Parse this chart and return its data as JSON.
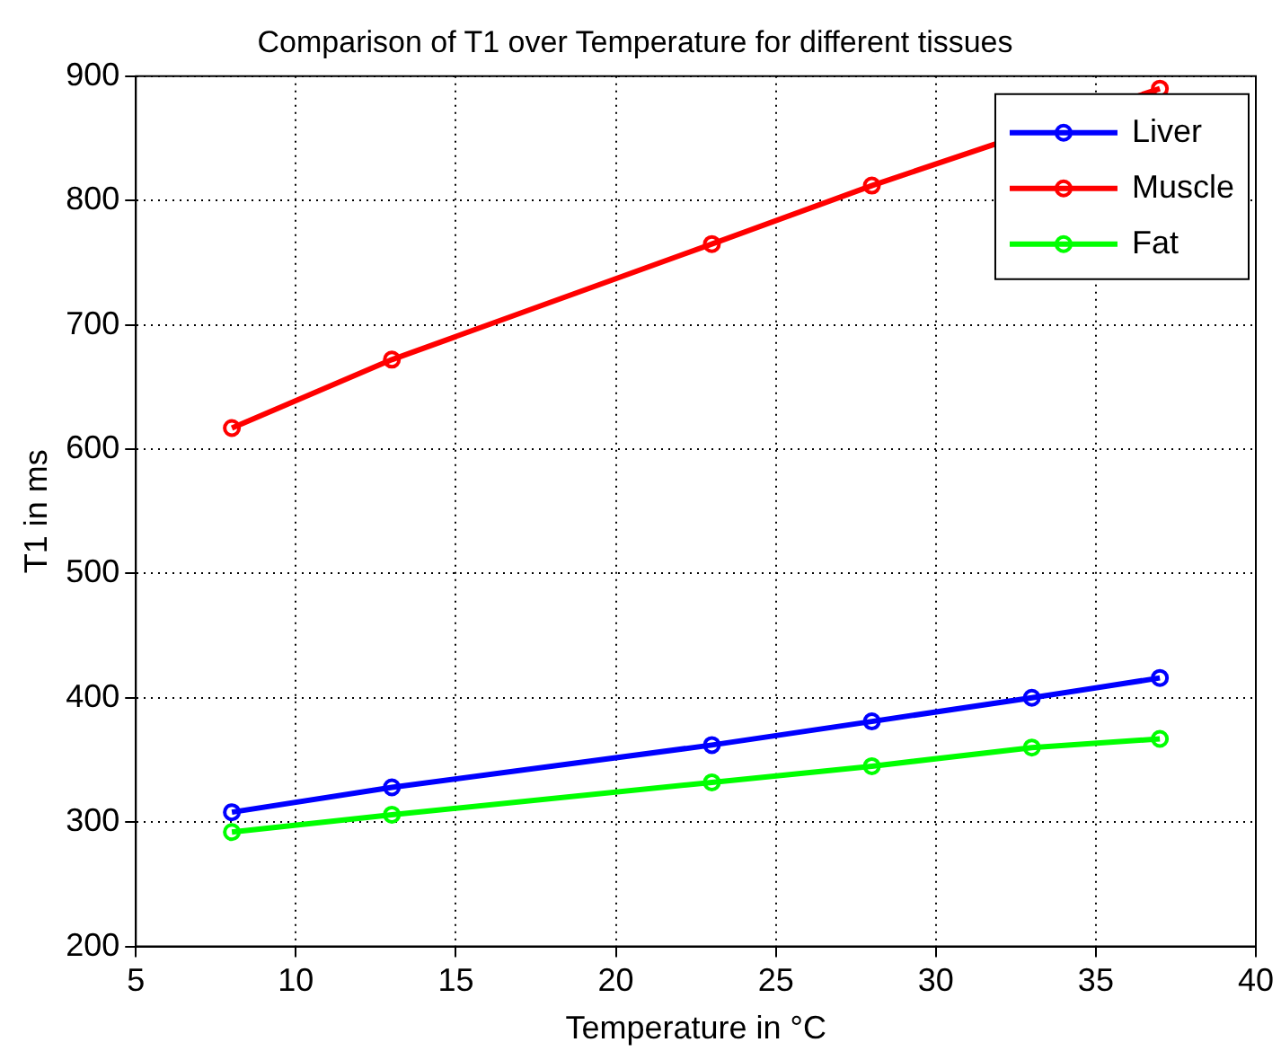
{
  "chart_data": {
    "type": "line",
    "title": "Comparison of T1 over Temperature for different tissues",
    "xlabel": "Temperature in °C",
    "ylabel": "T1 in ms",
    "x": [
      8,
      13,
      23,
      28,
      33,
      37
    ],
    "series": [
      {
        "name": "Liver",
        "color": "#0000ff",
        "values": [
          308,
          328,
          362,
          381,
          400,
          416
        ]
      },
      {
        "name": "Muscle",
        "color": "#ff0000",
        "values": [
          617,
          672,
          765,
          812,
          null,
          890
        ]
      },
      {
        "name": "Fat",
        "color": "#00ff00",
        "values": [
          292,
          306,
          332,
          345,
          360,
          367
        ]
      }
    ],
    "xlim": [
      5,
      40
    ],
    "xticks": [
      5,
      10,
      15,
      20,
      25,
      30,
      35,
      40
    ],
    "ylim": [
      200,
      900
    ],
    "yticks": [
      200,
      300,
      400,
      500,
      600,
      700,
      800,
      900
    ],
    "grid": true,
    "legend": "top right",
    "marker": "circle",
    "line_style": "solid"
  }
}
